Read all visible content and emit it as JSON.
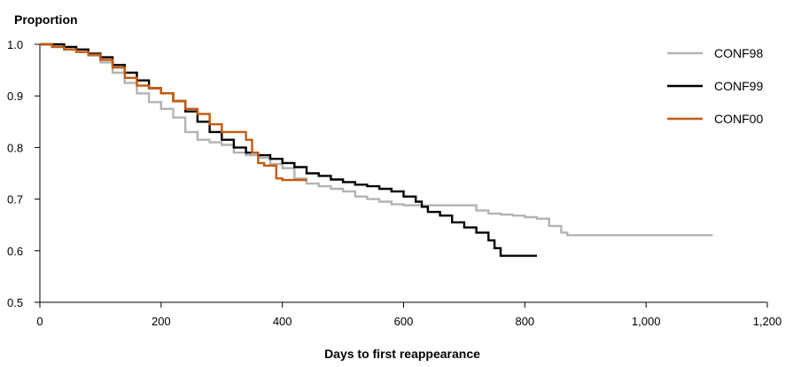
{
  "chart_data": {
    "type": "line",
    "title": "",
    "ylabel": "Proportion",
    "xlabel": "Days to first reappearance",
    "xlim": [
      0,
      1200
    ],
    "ylim": [
      0.5,
      1.0
    ],
    "x_ticks": [
      0,
      200,
      400,
      600,
      800,
      1000,
      1200
    ],
    "x_tick_labels": [
      "0",
      "200",
      "400",
      "600",
      "800",
      "1,000",
      "1,200"
    ],
    "y_ticks": [
      0.5,
      0.6,
      0.7,
      0.8,
      0.9,
      1.0
    ],
    "y_tick_labels": [
      "0.5",
      "0.6",
      "0.7",
      "0.8",
      "0.9",
      "1.0"
    ],
    "grid": false,
    "legend_position": "top-right",
    "series": [
      {
        "name": "CONF98",
        "color": "#b3b3b3",
        "x": [
          0,
          20,
          40,
          60,
          80,
          100,
          120,
          140,
          160,
          180,
          200,
          220,
          240,
          260,
          280,
          300,
          320,
          340,
          360,
          380,
          400,
          420,
          440,
          460,
          480,
          500,
          520,
          540,
          560,
          580,
          600,
          640,
          680,
          700,
          720,
          740,
          760,
          780,
          800,
          820,
          840,
          860,
          870,
          900,
          1000,
          1110
        ],
        "y": [
          1.0,
          0.995,
          0.99,
          0.985,
          0.978,
          0.965,
          0.945,
          0.925,
          0.905,
          0.888,
          0.875,
          0.858,
          0.83,
          0.815,
          0.81,
          0.805,
          0.79,
          0.785,
          0.78,
          0.768,
          0.76,
          0.74,
          0.73,
          0.725,
          0.72,
          0.715,
          0.705,
          0.7,
          0.695,
          0.69,
          0.688,
          0.688,
          0.688,
          0.688,
          0.678,
          0.672,
          0.67,
          0.668,
          0.665,
          0.662,
          0.648,
          0.635,
          0.63,
          0.63,
          0.63,
          0.63
        ]
      },
      {
        "name": "CONF99",
        "color": "#000000",
        "x": [
          0,
          20,
          40,
          60,
          80,
          100,
          120,
          140,
          160,
          180,
          200,
          220,
          240,
          260,
          280,
          300,
          320,
          340,
          360,
          380,
          400,
          420,
          440,
          460,
          480,
          500,
          520,
          540,
          560,
          580,
          600,
          620,
          630,
          640,
          660,
          680,
          700,
          720,
          740,
          750,
          760,
          780,
          800,
          820
        ],
        "y": [
          1.0,
          1.0,
          0.995,
          0.99,
          0.982,
          0.975,
          0.96,
          0.945,
          0.93,
          0.915,
          0.905,
          0.89,
          0.87,
          0.85,
          0.83,
          0.815,
          0.8,
          0.79,
          0.785,
          0.778,
          0.77,
          0.762,
          0.75,
          0.745,
          0.738,
          0.733,
          0.728,
          0.725,
          0.72,
          0.715,
          0.705,
          0.695,
          0.685,
          0.675,
          0.668,
          0.655,
          0.645,
          0.635,
          0.62,
          0.605,
          0.59,
          0.59,
          0.59,
          0.59
        ]
      },
      {
        "name": "CONF00",
        "color": "#c55a11",
        "x": [
          0,
          20,
          40,
          60,
          80,
          100,
          120,
          140,
          160,
          180,
          200,
          220,
          240,
          260,
          280,
          300,
          320,
          340,
          350,
          360,
          370,
          380,
          390,
          400,
          420,
          440
        ],
        "y": [
          1.0,
          0.995,
          0.99,
          0.985,
          0.98,
          0.97,
          0.955,
          0.935,
          0.92,
          0.915,
          0.905,
          0.89,
          0.875,
          0.865,
          0.845,
          0.83,
          0.83,
          0.815,
          0.79,
          0.77,
          0.765,
          0.765,
          0.74,
          0.737,
          0.737,
          0.737
        ]
      }
    ]
  }
}
